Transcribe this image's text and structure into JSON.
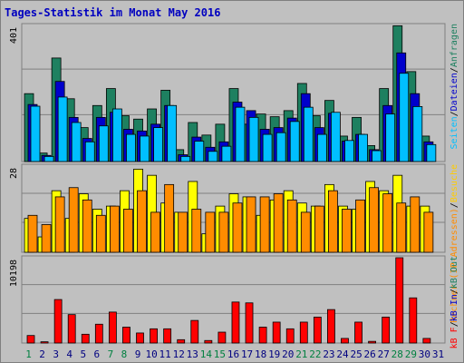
{
  "title": "Tages-Statistik im Monat May 2016",
  "chart_data": [
    {
      "type": "bar",
      "panel": "top",
      "max_label": "401",
      "ylim": [
        0,
        401
      ],
      "categories": [
        "1",
        "2",
        "3",
        "4",
        "5",
        "6",
        "7",
        "8",
        "9",
        "10",
        "11",
        "12",
        "13",
        "14",
        "15",
        "16",
        "17",
        "18",
        "19",
        "20",
        "21",
        "22",
        "23",
        "24",
        "25",
        "26",
        "27",
        "28",
        "29",
        "30",
        "31"
      ],
      "series": [
        {
          "name": "Anfragen",
          "color": "#1e8060",
          "values": [
            200,
            25,
            305,
            185,
            100,
            165,
            215,
            135,
            125,
            155,
            210,
            35,
            115,
            78,
            110,
            215,
            110,
            140,
            132,
            150,
            230,
            135,
            180,
            75,
            130,
            47,
            215,
            400,
            265,
            75,
            0
          ]
        },
        {
          "name": "Dateien",
          "color": "#0000cc",
          "values": [
            168,
            18,
            236,
            130,
            68,
            130,
            145,
            95,
            90,
            110,
            165,
            20,
            72,
            42,
            58,
            175,
            150,
            95,
            100,
            128,
            200,
            100,
            142,
            60,
            80,
            35,
            165,
            320,
            200,
            58,
            0
          ]
        },
        {
          "name": "Seiten",
          "color": "#00bfff",
          "values": [
            163,
            15,
            190,
            115,
            58,
            105,
            155,
            80,
            75,
            100,
            165,
            15,
            60,
            30,
            45,
            160,
            130,
            80,
            85,
            118,
            160,
            80,
            145,
            62,
            80,
            32,
            140,
            260,
            162,
            50,
            0
          ]
        }
      ],
      "legend_labels": [
        "Seiten",
        "/",
        "Dateien",
        "/",
        "Anfragen"
      ]
    },
    {
      "type": "bar",
      "panel": "middle",
      "max_label": "28",
      "ylim": [
        0,
        28
      ],
      "categories": [
        "1",
        "2",
        "3",
        "4",
        "5",
        "6",
        "7",
        "8",
        "9",
        "10",
        "11",
        "12",
        "13",
        "14",
        "15",
        "16",
        "17",
        "18",
        "19",
        "20",
        "21",
        "22",
        "23",
        "24",
        "25",
        "26",
        "27",
        "28",
        "29",
        "30",
        "31"
      ],
      "series": [
        {
          "name": "Besuche",
          "color": "#ffff00",
          "values": [
            11,
            5,
            20,
            11,
            19,
            14,
            15,
            20,
            27,
            25,
            16,
            13,
            23,
            6,
            15,
            19,
            18,
            12,
            17,
            20,
            16,
            15,
            22,
            15,
            14,
            23,
            20,
            25,
            15,
            15,
            0
          ]
        },
        {
          "name": "Rechner (IP-Adressen)",
          "color": "#ff8c00",
          "values": [
            12,
            9,
            18,
            21,
            17,
            12,
            15,
            14,
            20,
            13,
            22,
            13,
            14,
            13,
            13,
            16,
            18,
            18,
            19,
            17,
            13,
            15,
            20,
            14,
            17,
            21,
            19,
            16,
            18,
            13,
            0
          ]
        }
      ],
      "legend_labels": [
        "Rechner (IP-Adressen)",
        "/",
        "Besuche"
      ]
    },
    {
      "type": "bar",
      "panel": "bottom",
      "max_label": "10198",
      "ylim": [
        0,
        10198
      ],
      "categories": [
        "1",
        "2",
        "3",
        "4",
        "5",
        "6",
        "7",
        "8",
        "9",
        "10",
        "11",
        "12",
        "13",
        "14",
        "15",
        "16",
        "17",
        "18",
        "19",
        "20",
        "21",
        "22",
        "23",
        "24",
        "25",
        "26",
        "27",
        "28",
        "29",
        "30",
        "31"
      ],
      "series": [
        {
          "name": "kB F",
          "color": "#ff0000",
          "values": [
            900,
            150,
            5200,
            3400,
            1050,
            2250,
            3700,
            1900,
            1200,
            1700,
            1700,
            400,
            2700,
            300,
            1300,
            4900,
            4800,
            1900,
            2500,
            1700,
            2500,
            3100,
            4000,
            550,
            2500,
            200,
            3100,
            10198,
            5400,
            550,
            0
          ]
        }
      ],
      "legend_labels": [
        "kB F",
        "/",
        "kB In",
        "/",
        "kB Out"
      ]
    }
  ],
  "x_axis": {
    "labels": [
      "1",
      "2",
      "3",
      "4",
      "5",
      "6",
      "7",
      "8",
      "9",
      "10",
      "11",
      "12",
      "13",
      "14",
      "15",
      "16",
      "17",
      "18",
      "19",
      "20",
      "21",
      "22",
      "23",
      "24",
      "25",
      "26",
      "27",
      "28",
      "29",
      "30",
      "31"
    ],
    "weekend_days": [
      1,
      7,
      8,
      14,
      15,
      21,
      22,
      28,
      29
    ],
    "weekend_color": "#008040",
    "weekday_color": "#000080"
  }
}
